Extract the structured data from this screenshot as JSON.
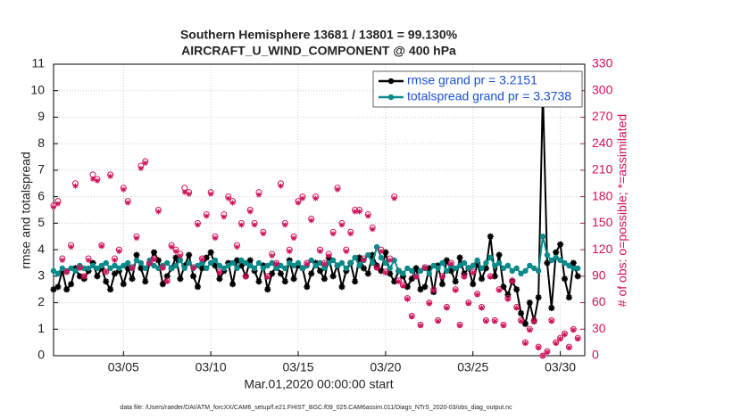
{
  "chart_data": {
    "type": "line",
    "title": "Southern Hemisphere 13681 / 13801 = 99.130%",
    "subtitle": "AIRCRAFT_U_WIND_COMPONENT @ 400 hPa",
    "xlabel": "Mar.01,2020 00:00:00 start",
    "ylabel": "rmse and totalspread",
    "y2label": "# of obs: o=possible; *=assimilated",
    "footnote": "data file: /Users/raeder/DAI/ATM_forcXX/CAM6_setup/f.e21.FHIST_BGC.f09_025.CAM6assim.011/Diags_NTrS_2020-03/obs_diag_output.nc",
    "x": [
      1,
      1.25,
      1.5,
      1.75,
      2,
      2.25,
      2.5,
      2.75,
      3,
      3.25,
      3.5,
      3.75,
      4,
      4.25,
      4.5,
      4.75,
      5,
      5.25,
      5.5,
      5.75,
      6,
      6.25,
      6.5,
      6.75,
      7,
      7.25,
      7.5,
      7.75,
      8,
      8.25,
      8.5,
      8.75,
      9,
      9.25,
      9.5,
      9.75,
      10,
      10.25,
      10.5,
      10.75,
      11,
      11.25,
      11.5,
      11.75,
      12,
      12.25,
      12.5,
      12.75,
      13,
      13.25,
      13.5,
      13.75,
      14,
      14.25,
      14.5,
      14.75,
      15,
      15.25,
      15.5,
      15.75,
      16,
      16.25,
      16.5,
      16.75,
      17,
      17.25,
      17.5,
      17.75,
      18,
      18.25,
      18.5,
      18.75,
      19,
      19.25,
      19.5,
      19.75,
      20,
      20.25,
      20.5,
      20.75,
      21,
      21.25,
      21.5,
      21.75,
      22,
      22.25,
      22.5,
      22.75,
      23,
      23.25,
      23.5,
      23.75,
      24,
      24.25,
      24.5,
      24.75,
      25,
      25.25,
      25.5,
      25.75,
      26,
      26.25,
      26.5,
      26.75,
      27,
      27.25,
      27.5,
      27.75,
      28,
      28.25,
      28.5,
      28.75,
      29,
      29.25,
      29.5,
      29.75,
      30,
      30.25,
      30.5,
      30.75,
      31
    ],
    "series": [
      {
        "name": "rmse grand pr = 3.2151",
        "color": "#000000",
        "marker": "star",
        "values": [
          2.5,
          2.6,
          3.2,
          2.5,
          2.7,
          3.3,
          3.0,
          2.9,
          3.2,
          3.5,
          3.0,
          3.3,
          2.8,
          2.5,
          3.1,
          3.2,
          2.7,
          3.3,
          2.9,
          3.8,
          3.3,
          2.8,
          3.5,
          3.9,
          3.6,
          2.7,
          3.0,
          3.3,
          3.7,
          2.9,
          3.4,
          3.8,
          3.0,
          2.6,
          3.3,
          3.7,
          3.9,
          3.4,
          2.9,
          3.2,
          3.5,
          2.7,
          3.6,
          3.4,
          3.0,
          3.6,
          3.2,
          2.8,
          3.4,
          2.5,
          3.1,
          3.4,
          3.1,
          2.8,
          3.6,
          2.9,
          3.4,
          3.3,
          2.6,
          3.1,
          3.5,
          3.2,
          2.9,
          3.7,
          3.0,
          3.4,
          2.6,
          3.2,
          3.5,
          2.8,
          3.7,
          3.3,
          3.1,
          3.8,
          3.4,
          3.2,
          3.9,
          3.1,
          2.8,
          3.2,
          3.0,
          2.6,
          2.9,
          3.3,
          2.5,
          2.6,
          3.3,
          2.4,
          3.4,
          2.7,
          3.6,
          3.2,
          2.8,
          3.7,
          3.1,
          3.3,
          2.7,
          3.5,
          2.9,
          3.3,
          4.5,
          3.0,
          3.8,
          2.6,
          2.3,
          2.8,
          2.5,
          1.6,
          1.2,
          2.0,
          1.3,
          2.2,
          10.0,
          3.5,
          1.8,
          3.9,
          4.2,
          2.9,
          2.2,
          3.5,
          3.0
        ]
      },
      {
        "name": "totalspread grand pr = 3.3738",
        "color": "#0a8a8a",
        "marker": "dot",
        "values": [
          3.2,
          3.1,
          3.3,
          3.2,
          3.3,
          3.2,
          3.4,
          3.3,
          3.3,
          3.4,
          3.3,
          3.4,
          3.5,
          3.3,
          3.4,
          3.3,
          3.4,
          3.5,
          3.3,
          3.6,
          3.5,
          3.3,
          3.6,
          3.4,
          3.3,
          3.4,
          3.5,
          3.3,
          3.4,
          3.6,
          3.3,
          3.5,
          3.3,
          3.4,
          3.5,
          3.3,
          3.5,
          3.6,
          3.4,
          3.3,
          3.4,
          3.5,
          3.3,
          3.6,
          3.5,
          3.4,
          3.3,
          3.5,
          3.3,
          3.4,
          3.5,
          3.3,
          3.4,
          3.3,
          3.5,
          3.4,
          3.5,
          3.3,
          3.4,
          3.6,
          3.4,
          3.5,
          3.3,
          3.5,
          3.6,
          3.4,
          3.5,
          3.3,
          3.5,
          3.7,
          3.4,
          3.6,
          3.8,
          3.5,
          4.1,
          3.7,
          3.5,
          3.3,
          3.6,
          3.2,
          3.1,
          3.3,
          3.2,
          3.0,
          3.2,
          3.3,
          3.1,
          3.4,
          3.3,
          3.5,
          3.2,
          3.4,
          3.3,
          3.4,
          3.5,
          3.3,
          3.4,
          3.6,
          3.3,
          3.5,
          3.7,
          3.4,
          3.5,
          3.3,
          3.4,
          3.2,
          3.3,
          3.1,
          3.2,
          3.4,
          3.3,
          3.2,
          4.5,
          3.8,
          3.6,
          3.7,
          3.6,
          3.5,
          3.4,
          3.3,
          3.3
        ]
      },
      {
        "axis": "y2",
        "color": "#d0105a",
        "marker": "circle",
        "values": [
          170,
          175,
          110,
          95,
          125,
          195,
          100,
          90,
          110,
          205,
          200,
          125,
          95,
          205,
          110,
          120,
          190,
          175,
          100,
          135,
          215,
          220,
          105,
          110,
          165,
          100,
          85,
          125,
          120,
          115,
          190,
          185,
          100,
          150,
          110,
          160,
          185,
          135,
          95,
          160,
          180,
          175,
          125,
          150,
          90,
          165,
          150,
          185,
          140,
          90,
          115,
          105,
          195,
          150,
          120,
          135,
          175,
          180,
          105,
          155,
          180,
          120,
          105,
          115,
          140,
          190,
          150,
          120,
          140,
          165,
          165,
          110,
          160,
          145,
          100,
          120,
          95,
          110,
          180,
          85,
          80,
          65,
          45,
          90,
          35,
          100,
          60,
          75,
          40,
          90,
          55,
          105,
          75,
          35,
          90,
          60,
          95,
          70,
          55,
          40,
          90,
          40,
          75,
          35,
          65,
          85,
          55,
          40,
          15,
          30,
          40,
          10,
          0,
          5,
          40,
          15,
          20,
          25,
          10,
          30,
          20
        ]
      },
      {
        "axis": "y2",
        "color": "#d0105a",
        "marker": "asterisk",
        "values": [
          168,
          172,
          108,
          95,
          123,
          192,
          99,
          90,
          108,
          200,
          198,
          124,
          95,
          203,
          108,
          118,
          188,
          173,
          99,
          133,
          212,
          218,
          104,
          109,
          163,
          99,
          84,
          123,
          118,
          113,
          185,
          183,
          99,
          148,
          109,
          158,
          183,
          133,
          94,
          157,
          178,
          173,
          123,
          148,
          89,
          163,
          148,
          182,
          138,
          89,
          113,
          104,
          192,
          148,
          118,
          133,
          173,
          178,
          104,
          153,
          178,
          118,
          104,
          113,
          138,
          188,
          148,
          118,
          138,
          163,
          163,
          108,
          158,
          143,
          99,
          118,
          94,
          108,
          178,
          84,
          79,
          64,
          44,
          89,
          34,
          99,
          59,
          74,
          39,
          89,
          54,
          104,
          74,
          34,
          89,
          59,
          94,
          69,
          54,
          39,
          89,
          39,
          74,
          34,
          64,
          84,
          54,
          39,
          14,
          29,
          39,
          9,
          0,
          4,
          39,
          14,
          19,
          24,
          9,
          29,
          19
        ]
      }
    ],
    "xlim": [
      1,
      31.4
    ],
    "xticks": [
      {
        "value": 5,
        "label": "03/05"
      },
      {
        "value": 10,
        "label": "03/10"
      },
      {
        "value": 15,
        "label": "03/15"
      },
      {
        "value": 20,
        "label": "03/20"
      },
      {
        "value": 25,
        "label": "03/25"
      },
      {
        "value": 30,
        "label": "03/30"
      }
    ],
    "ylim": [
      0,
      11
    ],
    "yticks": [
      0,
      1,
      2,
      3,
      4,
      5,
      6,
      7,
      8,
      9,
      10,
      11
    ],
    "y2lim": [
      0,
      330
    ],
    "y2ticks": [
      0,
      30,
      60,
      90,
      120,
      150,
      180,
      210,
      240,
      270,
      300,
      330
    ],
    "y2color": "#d0105a",
    "legend_color": "#1a4fd0",
    "grid": true,
    "legend": "upper right"
  }
}
